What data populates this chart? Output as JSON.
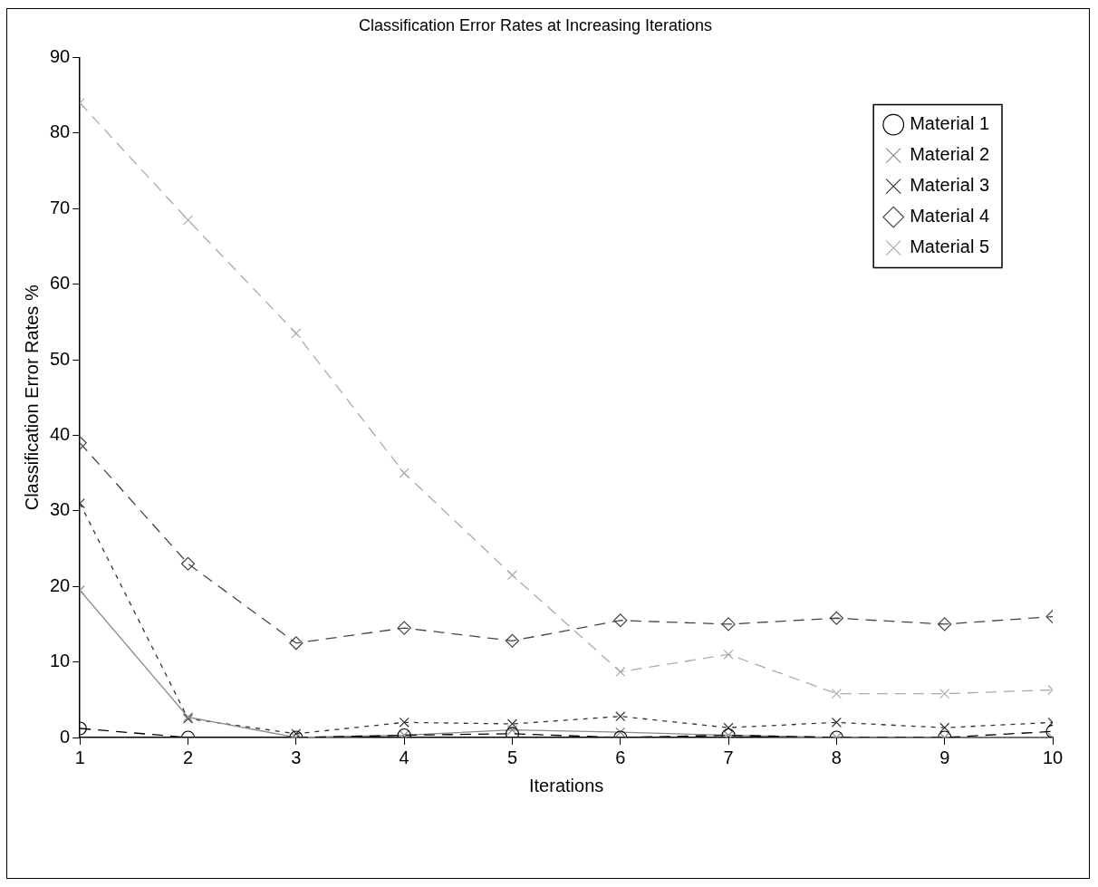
{
  "chart_data": {
    "type": "line",
    "title": "Classification Error Rates at Increasing Iterations",
    "xlabel": "Iterations",
    "ylabel": "Classification Error Rates %",
    "x": [
      1,
      2,
      3,
      4,
      5,
      6,
      7,
      8,
      9,
      10
    ],
    "xlim": [
      1,
      10
    ],
    "xticks": [
      1,
      2,
      3,
      4,
      5,
      6,
      7,
      8,
      9,
      10
    ],
    "ylim": [
      0,
      90
    ],
    "yticks": [
      0,
      10,
      20,
      30,
      40,
      50,
      60,
      70,
      80,
      90
    ],
    "grid": false,
    "legend": "top right",
    "series": [
      {
        "name": "Material 1",
        "color": "#000000",
        "marker": "circle",
        "line_style": "dashed",
        "values": [
          1.2,
          0,
          0,
          0.3,
          0.5,
          0,
          0.3,
          0,
          0,
          0.8
        ]
      },
      {
        "name": "Material 2",
        "color": "#8c8c8c",
        "marker": "cross",
        "line_style": "solid",
        "values": [
          19.5,
          2.7,
          0,
          0.3,
          1.0,
          0.7,
          0.3,
          0,
          0,
          0
        ]
      },
      {
        "name": "Material 3",
        "color": "#333333",
        "marker": "cross",
        "line_style": "dotted",
        "values": [
          31,
          2.5,
          0.5,
          2,
          1.8,
          2.8,
          1.3,
          2,
          1.3,
          2
        ]
      },
      {
        "name": "Material 4",
        "color": "#444444",
        "marker": "diamond",
        "line_style": "dashed",
        "values": [
          39,
          23,
          12.5,
          14.5,
          12.8,
          15.5,
          15,
          15.8,
          15,
          16
        ]
      },
      {
        "name": "Material 5",
        "color": "#aaaaaa",
        "marker": "cross",
        "line_style": "dashed",
        "values": [
          84,
          68.5,
          53.5,
          35,
          21.5,
          8.7,
          11,
          5.8,
          5.8,
          6.3
        ]
      }
    ]
  }
}
